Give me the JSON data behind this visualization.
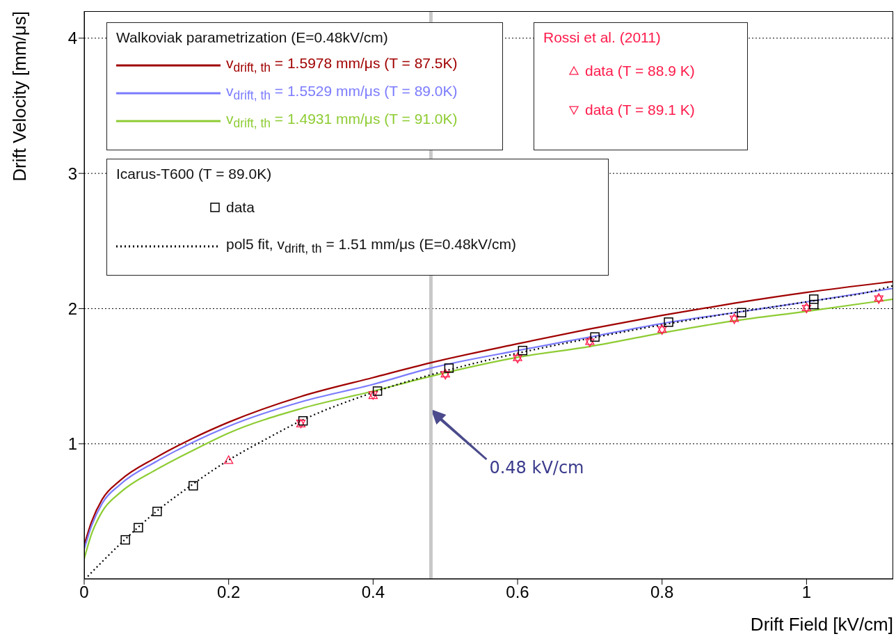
{
  "chart_data": {
    "type": "line",
    "xlabel": "Drift Field [kV/cm]",
    "ylabel": "Drift Velocity [mm/μs]",
    "xlim": [
      0,
      1.12
    ],
    "ylim": [
      0,
      4.2
    ],
    "xticks": [
      0,
      0.2,
      0.4,
      0.6,
      0.8,
      1
    ],
    "yticks": [
      1,
      2,
      3,
      4
    ],
    "grid": "y",
    "legend": "top left",
    "marker": "none",
    "line_style": "solid",
    "annotations": [
      "Walkoviak parametrization (E=0.48kV/cm)",
      "Rossi et al. (2011)",
      "Icarus-T600 (T = 89.0K)",
      "0.48 kV/cm"
    ],
    "ref_lines": [
      {
        "axis": "x",
        "value": 0.48,
        "color": "#c8c8c8"
      }
    ],
    "series": [
      {
        "name": "v$_{drift, th}$ = 1.5978 mm/μs (T = 87.5K)",
        "color": "#a00000",
        "x": [
          0,
          0.01,
          0.025,
          0.05,
          0.1,
          0.15,
          0.2,
          0.3,
          0.4,
          0.48,
          0.6,
          0.7,
          0.8,
          0.9,
          1.0,
          1.12
        ],
        "values": [
          0.25,
          0.42,
          0.59,
          0.73,
          0.9,
          1.04,
          1.16,
          1.35,
          1.49,
          1.6,
          1.74,
          1.85,
          1.95,
          2.04,
          2.12,
          2.2
        ]
      },
      {
        "name": "v$_{drift, th}$ = 1.5529 mm/μs (T = 89.0K)",
        "color": "#7b7bff",
        "x": [
          0,
          0.01,
          0.025,
          0.05,
          0.1,
          0.15,
          0.2,
          0.3,
          0.4,
          0.48,
          0.6,
          0.7,
          0.8,
          0.9,
          1.0,
          1.12
        ],
        "values": [
          0.22,
          0.39,
          0.56,
          0.7,
          0.87,
          1.01,
          1.13,
          1.31,
          1.44,
          1.56,
          1.69,
          1.79,
          1.89,
          1.97,
          2.05,
          2.15
        ]
      },
      {
        "name": "v$_{drift, th}$ = 1.4931 mm/μs (T = 91.0K)",
        "color": "#8ecc33",
        "x": [
          0,
          0.01,
          0.025,
          0.05,
          0.1,
          0.15,
          0.2,
          0.3,
          0.4,
          0.48,
          0.6,
          0.7,
          0.8,
          0.9,
          1.0,
          1.12
        ],
        "values": [
          0.15,
          0.33,
          0.5,
          0.64,
          0.81,
          0.95,
          1.08,
          1.26,
          1.39,
          1.5,
          1.64,
          1.72,
          1.82,
          1.91,
          1.98,
          2.07
        ]
      },
      {
        "name": "data (T = 88.9 K)",
        "type": "scatter",
        "marker": "triangle",
        "color": "#ff1a4a",
        "x": [
          0.2,
          0.3,
          0.4,
          0.5,
          0.6,
          0.7,
          0.8,
          0.9,
          1.0,
          1.1
        ],
        "values": [
          0.88,
          1.15,
          1.36,
          1.52,
          1.64,
          1.76,
          1.85,
          1.93,
          2.01,
          2.08
        ]
      },
      {
        "name": "data (T = 89.1 K)",
        "type": "scatter",
        "marker": "triangle-down",
        "color": "#ff1a4a",
        "x": [
          0.3,
          0.4,
          0.5,
          0.6,
          0.7,
          0.8,
          0.9,
          1.0,
          1.1
        ],
        "values": [
          1.15,
          1.36,
          1.51,
          1.63,
          1.75,
          1.84,
          1.92,
          2.0,
          2.07
        ]
      },
      {
        "name": "data",
        "type": "scatter",
        "marker": "square",
        "color": "#000000",
        "x": [
          0.057,
          0.075,
          0.101,
          0.151,
          0.303,
          0.406,
          0.505,
          0.607,
          0.707,
          0.809,
          0.91,
          1.01,
          1.01
        ],
        "values": [
          0.29,
          0.38,
          0.5,
          0.69,
          1.17,
          1.39,
          1.56,
          1.69,
          1.79,
          1.9,
          1.97,
          2.07,
          2.03
        ]
      },
      {
        "name": "pol5 fit, v$_{drift, th}$ = 1.51 mm/μs  (E=0.48kV/cm)",
        "line_style": "dotted",
        "color": "#000000",
        "x": [
          0.005,
          0.05,
          0.1,
          0.15,
          0.2,
          0.25,
          0.3,
          0.4,
          0.5,
          0.6,
          0.7,
          0.8,
          0.9,
          1.0,
          1.1,
          1.12
        ],
        "values": [
          0.02,
          0.26,
          0.5,
          0.7,
          0.88,
          1.03,
          1.17,
          1.38,
          1.54,
          1.67,
          1.78,
          1.88,
          1.97,
          2.05,
          2.14,
          2.17
        ]
      }
    ]
  }
}
